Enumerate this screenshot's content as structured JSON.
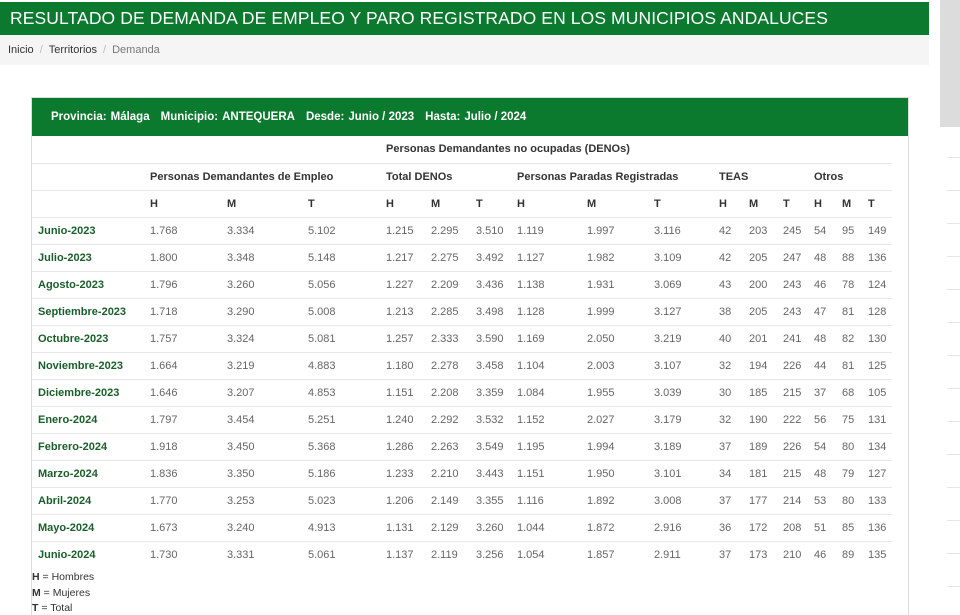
{
  "header": {
    "title": "RESULTADO DE DEMANDA DE EMPLEO Y PARO REGISTRADO EN LOS MUNICIPIOS ANDALUCES"
  },
  "breadcrumb": [
    {
      "label": "Inicio"
    },
    {
      "label": "Territorios"
    },
    {
      "label": "Demanda"
    }
  ],
  "panel": {
    "provincia_label": "Provincia:",
    "provincia": "Málaga",
    "municipio_label": "Municipio:",
    "municipio": "ANTEQUERA",
    "desde_label": "Desde:",
    "desde": "Junio / 2023",
    "hasta_label": "Hasta:",
    "hasta": "Julio / 2024"
  },
  "table": {
    "group_top": "Personas Demandantes no ocupadas (DENOs)",
    "groups": {
      "demandantes": "Personas Demandantes de Empleo",
      "total_denos": "Total DENOs",
      "paradas": "Personas Paradas Registradas",
      "teas": "TEAS",
      "otros": "Otros"
    },
    "col_h": "H",
    "col_m": "M",
    "col_t": "T",
    "rows": [
      {
        "mes": "Junio-2023",
        "values": [
          "1.768",
          "3.334",
          "5.102",
          "1.215",
          "2.295",
          "3.510",
          "1.119",
          "1.997",
          "3.116",
          "42",
          "203",
          "245",
          "54",
          "95",
          "149"
        ]
      },
      {
        "mes": "Julio-2023",
        "values": [
          "1.800",
          "3.348",
          "5.148",
          "1.217",
          "2.275",
          "3.492",
          "1.127",
          "1.982",
          "3.109",
          "42",
          "205",
          "247",
          "48",
          "88",
          "136"
        ]
      },
      {
        "mes": "Agosto-2023",
        "values": [
          "1.796",
          "3.260",
          "5.056",
          "1.227",
          "2.209",
          "3.436",
          "1.138",
          "1.931",
          "3.069",
          "43",
          "200",
          "243",
          "46",
          "78",
          "124"
        ]
      },
      {
        "mes": "Septiembre-2023",
        "values": [
          "1.718",
          "3.290",
          "5.008",
          "1.213",
          "2.285",
          "3.498",
          "1.128",
          "1.999",
          "3.127",
          "38",
          "205",
          "243",
          "47",
          "81",
          "128"
        ]
      },
      {
        "mes": "Octubre-2023",
        "values": [
          "1.757",
          "3.324",
          "5.081",
          "1.257",
          "2.333",
          "3.590",
          "1.169",
          "2.050",
          "3.219",
          "40",
          "201",
          "241",
          "48",
          "82",
          "130"
        ]
      },
      {
        "mes": "Noviembre-2023",
        "values": [
          "1.664",
          "3.219",
          "4.883",
          "1.180",
          "2.278",
          "3.458",
          "1.104",
          "2.003",
          "3.107",
          "32",
          "194",
          "226",
          "44",
          "81",
          "125"
        ]
      },
      {
        "mes": "Diciembre-2023",
        "values": [
          "1.646",
          "3.207",
          "4.853",
          "1.151",
          "2.208",
          "3.359",
          "1.084",
          "1.955",
          "3.039",
          "30",
          "185",
          "215",
          "37",
          "68",
          "105"
        ]
      },
      {
        "mes": "Enero-2024",
        "values": [
          "1.797",
          "3.454",
          "5.251",
          "1.240",
          "2.292",
          "3.532",
          "1.152",
          "2.027",
          "3.179",
          "32",
          "190",
          "222",
          "56",
          "75",
          "131"
        ]
      },
      {
        "mes": "Febrero-2024",
        "values": [
          "1.918",
          "3.450",
          "5.368",
          "1.286",
          "2.263",
          "3.549",
          "1.195",
          "1.994",
          "3.189",
          "37",
          "189",
          "226",
          "54",
          "80",
          "134"
        ]
      },
      {
        "mes": "Marzo-2024",
        "values": [
          "1.836",
          "3.350",
          "5.186",
          "1.233",
          "2.210",
          "3.443",
          "1.151",
          "1.950",
          "3.101",
          "34",
          "181",
          "215",
          "48",
          "79",
          "127"
        ]
      },
      {
        "mes": "Abril-2024",
        "values": [
          "1.770",
          "3.253",
          "5.023",
          "1.206",
          "2.149",
          "3.355",
          "1.116",
          "1.892",
          "3.008",
          "37",
          "177",
          "214",
          "53",
          "80",
          "133"
        ]
      },
      {
        "mes": "Mayo-2024",
        "values": [
          "1.673",
          "3.240",
          "4.913",
          "1.131",
          "2.129",
          "3.260",
          "1.044",
          "1.872",
          "2.916",
          "36",
          "172",
          "208",
          "51",
          "85",
          "136"
        ]
      },
      {
        "mes": "Junio-2024",
        "values": [
          "1.730",
          "3.331",
          "5.061",
          "1.137",
          "2.119",
          "3.256",
          "1.054",
          "1.857",
          "2.911",
          "37",
          "173",
          "210",
          "46",
          "89",
          "135"
        ]
      }
    ]
  },
  "legend": [
    {
      "key": "H",
      "text": "= Hombres"
    },
    {
      "key": "M",
      "text": "= Mujeres"
    },
    {
      "key": "T",
      "text": "= Total"
    }
  ]
}
